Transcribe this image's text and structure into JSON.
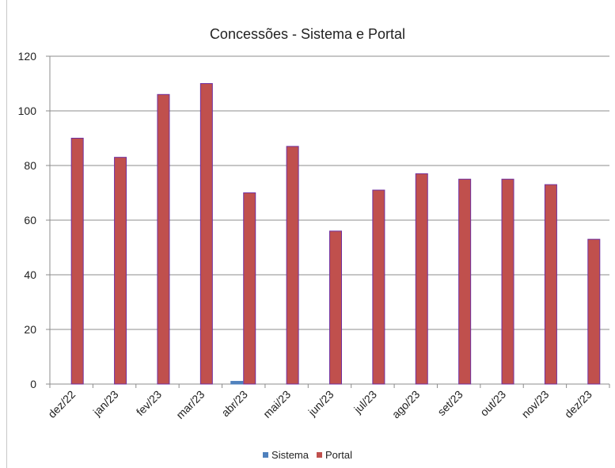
{
  "chart_data": {
    "type": "bar",
    "title": "Concessões - Sistema e Portal",
    "xlabel": "",
    "ylabel": "",
    "ylim": [
      0,
      120
    ],
    "yticks": [
      0,
      20,
      40,
      60,
      80,
      100,
      120
    ],
    "categories": [
      "dez/22",
      "jan/23",
      "fev/23",
      "mar/23",
      "abr/23",
      "mai/23",
      "jun/23",
      "jul/23",
      "ago/23",
      "set/23",
      "out/23",
      "nov/23",
      "dez/23"
    ],
    "series": [
      {
        "name": "Sistema",
        "color": "#4f81bd",
        "values": [
          0,
          0,
          0,
          0,
          1,
          0,
          0,
          0,
          0,
          0,
          0,
          0,
          0
        ]
      },
      {
        "name": "Portal",
        "color": "#c0504d",
        "stroke": "#7030a0",
        "values": [
          90,
          83,
          106,
          110,
          70,
          87,
          56,
          71,
          77,
          75,
          75,
          73,
          53
        ]
      }
    ],
    "grid": true,
    "legend": "bottom"
  }
}
